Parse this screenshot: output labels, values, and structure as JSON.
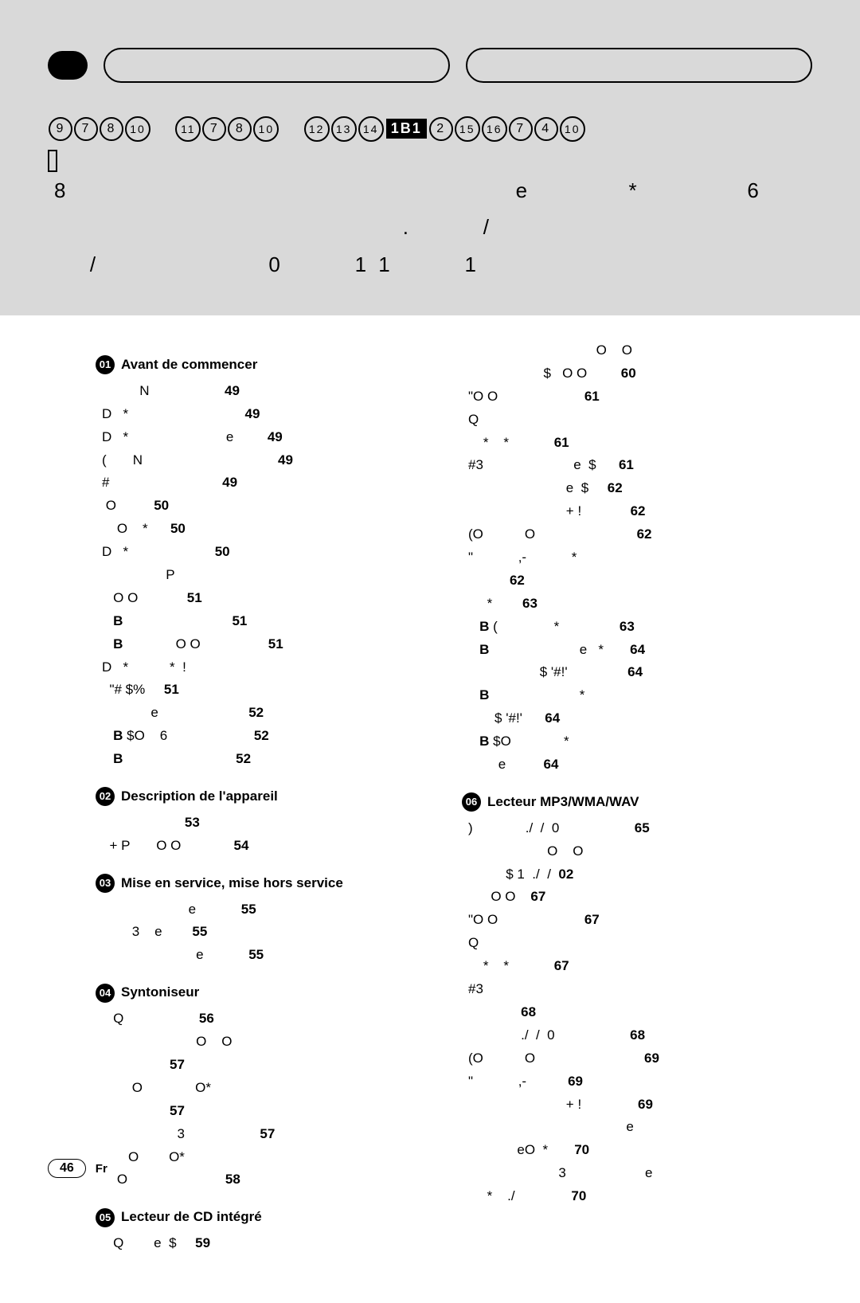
{
  "header": {
    "model_circles_1": [
      "9",
      "7",
      "8",
      "10"
    ],
    "model_circles_2": [
      "11",
      "7",
      "8",
      "10"
    ],
    "model_circles_3": [
      "12",
      "13",
      "14"
    ],
    "black_label": "1B1",
    "model_circles_4": [
      "2",
      "15",
      "16",
      "7",
      "4",
      "10"
    ],
    "garbled_line1": "8                                                  e           *            6",
    "garbled_line2": "                                       .        /",
    "garbled_line3": "    /                   0        1 1        1"
  },
  "sections": {
    "s01": {
      "num": "01",
      "title": "Avant de commencer"
    },
    "s02": {
      "num": "02",
      "title": "Description de l'appareil"
    },
    "s03": {
      "num": "03",
      "title": "Mise en service, mise hors service"
    },
    "s04": {
      "num": "04",
      "title": "Syntoniseur"
    },
    "s05": {
      "num": "05",
      "title": "Lecteur de CD intégré"
    },
    "s06": {
      "num": "06",
      "title": "Lecteur MP3/WMA/WAV"
    }
  },
  "left_entries": [
    "          N                    49",
    "D   *                               49",
    "D   *                          e         49",
    "(       N                                    49",
    "#                              49",
    " O          50",
    "    O    *      50",
    "D   *                       50",
    "                 P",
    "   O O             51",
    "   B                             51",
    "   B              O O                  51",
    "D   *           *  !",
    "  \"# $%     51",
    "             e                        52",
    "   B $O    6                       52",
    "   B                              52"
  ],
  "left02": [
    "                      53",
    "  + P       O O              54"
  ],
  "left03": [
    "                       e            55",
    "        3    e        55",
    "                         e            55"
  ],
  "left04": [
    "   Q                    56",
    "                         O    O",
    "                  57",
    "        O              O*",
    "                  57",
    "                    3                    57",
    "       O        O*",
    "    O                          58"
  ],
  "left05": [
    "   Q        e  $     59"
  ],
  "right_pre": [
    "                                  O    O",
    "                    $   O O         60",
    "\"O O                       61",
    "Q",
    "    *    *            61",
    "#3                        e  $      61",
    "                          e  $     62",
    "                          + !             62",
    "(O           O                           62",
    "\"            ,-            *",
    "           62",
    "",
    "     *        63",
    "   B (               *                63",
    "   B                        e   *       64",
    "                   $ '#!'                64",
    "   B                        *",
    "       $ '#!'      64",
    "   B $O              *",
    "        e          64"
  ],
  "right06": [
    ")              ./  /  0                    65",
    "                     O    O",
    "          $ 1  ./  /  02",
    "      O O    67",
    "\"O O                       67",
    "Q",
    "    *    *            67",
    "#3",
    "              68",
    "              ./  /  0                    68",
    "(O           O                             69",
    "\"            ,-           69",
    "                          + !               69",
    "                                          e",
    "             eO  *       70",
    "                        3                     e",
    "     *    ./               70"
  ],
  "footer": {
    "page": "46",
    "lang": "Fr"
  },
  "colors": {
    "header_bg": "#d9d9d9",
    "text": "#000000",
    "bg": "#ffffff"
  }
}
